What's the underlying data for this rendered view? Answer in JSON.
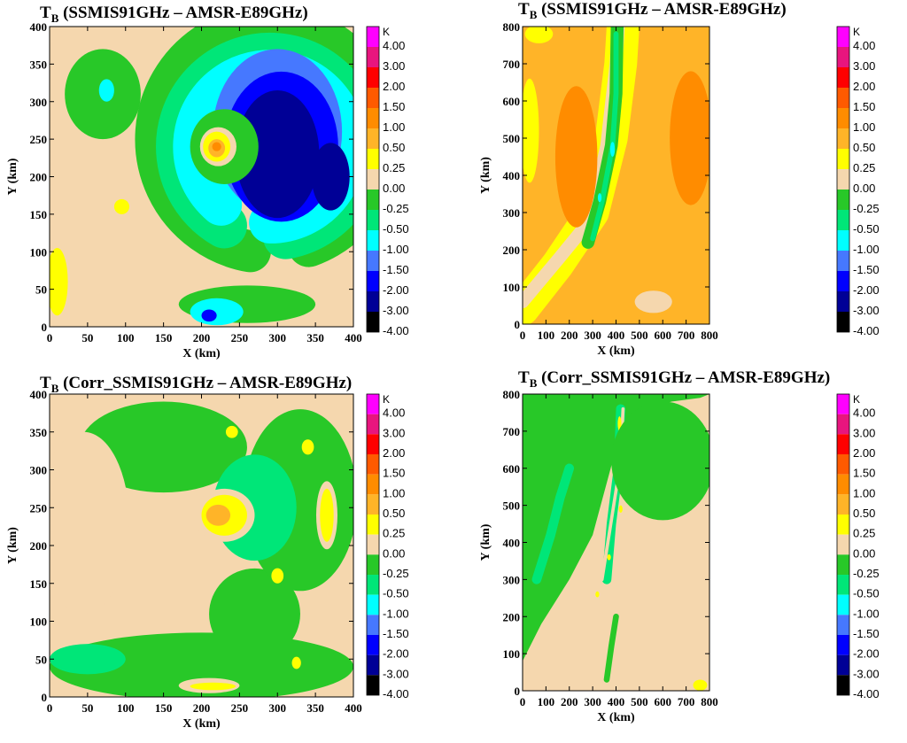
{
  "colorbar": {
    "unit": "K",
    "levels": [
      "4.00",
      "3.00",
      "2.00",
      "1.50",
      "1.00",
      "0.50",
      "0.25",
      "0.00",
      "-0.25",
      "-0.50",
      "-1.00",
      "-1.50",
      "-2.00",
      "-3.00",
      "-4.00"
    ],
    "colors": [
      "#ff00ff",
      "#e8157e",
      "#ff0000",
      "#ff5a00",
      "#ff8c00",
      "#ffb428",
      "#ffff00",
      "#f5d7ae",
      "#28c828",
      "#00e678",
      "#00ffff",
      "#4678ff",
      "#0000ff",
      "#000096",
      "#000000"
    ]
  },
  "chart_data": [
    {
      "type": "heatmap",
      "panel": "top-left",
      "title_main": "T",
      "title_sub": "B",
      "title_rest": " (SSMIS91GHz – AMSR-E89GHz)",
      "xlabel": "X (km)",
      "ylabel": "Y (km)",
      "xlim": [
        0,
        400
      ],
      "ylim": [
        0,
        400
      ],
      "xticks": [
        "0",
        "50",
        "100",
        "150",
        "200",
        "250",
        "300",
        "350",
        "400"
      ],
      "yticks": [
        "0",
        "50",
        "100",
        "150",
        "200",
        "250",
        "300",
        "350",
        "400"
      ],
      "background_level": "0.00",
      "features": [
        {
          "shape": "ring",
          "cx": 290,
          "cy": 250,
          "r": 150,
          "w": 55,
          "a0": -70,
          "a1": 260,
          "level": "-0.25"
        },
        {
          "shape": "ring",
          "cx": 290,
          "cy": 240,
          "r": 120,
          "w": 60,
          "a0": -80,
          "a1": 240,
          "level": "-0.50"
        },
        {
          "shape": "ring",
          "cx": 290,
          "cy": 240,
          "r": 100,
          "w": 55,
          "a0": -90,
          "a1": 230,
          "level": "-1.00"
        },
        {
          "shape": "ellipse",
          "cx": 300,
          "cy": 260,
          "rx": 85,
          "ry": 110,
          "level": "-1.50"
        },
        {
          "shape": "ellipse",
          "cx": 305,
          "cy": 240,
          "rx": 75,
          "ry": 100,
          "level": "-2.00"
        },
        {
          "shape": "ellipse",
          "cx": 300,
          "cy": 230,
          "rx": 55,
          "ry": 85,
          "level": "-3.00"
        },
        {
          "shape": "ellipse",
          "cx": 230,
          "cy": 240,
          "rx": 45,
          "ry": 50,
          "level": "-0.25"
        },
        {
          "shape": "ellipse",
          "cx": 222,
          "cy": 240,
          "rx": 24,
          "ry": 26,
          "level": "0.00"
        },
        {
          "shape": "ellipse",
          "cx": 220,
          "cy": 240,
          "rx": 18,
          "ry": 20,
          "level": "0.25"
        },
        {
          "shape": "ellipse",
          "cx": 220,
          "cy": 238,
          "rx": 11,
          "ry": 12,
          "level": "0.50"
        },
        {
          "shape": "ellipse",
          "cx": 220,
          "cy": 240,
          "rx": 6,
          "ry": 6,
          "level": "1.00"
        },
        {
          "shape": "ellipse",
          "cx": 370,
          "cy": 200,
          "rx": 25,
          "ry": 45,
          "level": "-3.00"
        },
        {
          "shape": "ellipse",
          "cx": 70,
          "cy": 310,
          "rx": 50,
          "ry": 60,
          "level": "-0.25"
        },
        {
          "shape": "ellipse",
          "cx": 75,
          "cy": 315,
          "rx": 10,
          "ry": 15,
          "level": "-1.00"
        },
        {
          "shape": "ellipse",
          "cx": 260,
          "cy": 30,
          "rx": 90,
          "ry": 25,
          "level": "-0.25"
        },
        {
          "shape": "ellipse",
          "cx": 220,
          "cy": 20,
          "rx": 35,
          "ry": 18,
          "level": "-1.00"
        },
        {
          "shape": "ellipse",
          "cx": 210,
          "cy": 15,
          "rx": 10,
          "ry": 8,
          "level": "-2.00"
        },
        {
          "shape": "ellipse",
          "cx": 10,
          "cy": 60,
          "rx": 14,
          "ry": 45,
          "level": "0.25"
        },
        {
          "shape": "ellipse",
          "cx": 95,
          "cy": 160,
          "rx": 10,
          "ry": 10,
          "level": "0.25"
        }
      ]
    },
    {
      "type": "heatmap",
      "panel": "top-right",
      "title_main": "T",
      "title_sub": "B",
      "title_rest": " (SSMIS91GHz – AMSR-E89GHz)",
      "xlabel": "X (km)",
      "ylabel": "Y (km)",
      "xlim": [
        0,
        800
      ],
      "ylim": [
        0,
        800
      ],
      "xticks": [
        "0",
        "100",
        "200",
        "300",
        "400",
        "500",
        "600",
        "700",
        "800"
      ],
      "yticks": [
        "0",
        "100",
        "200",
        "300",
        "400",
        "500",
        "600",
        "700",
        "800"
      ],
      "background_level": "0.50",
      "features": [
        {
          "shape": "band",
          "pts": [
            [
              0,
              40
            ],
            [
              150,
              160
            ],
            [
              300,
              300
            ],
            [
              380,
              500
            ],
            [
              420,
              700
            ],
            [
              430,
              800
            ]
          ],
          "w": 140,
          "level": "0.25"
        },
        {
          "shape": "band",
          "pts": [
            [
              0,
              60
            ],
            [
              160,
              180
            ],
            [
              290,
              280
            ],
            [
              360,
              480
            ],
            [
              400,
              700
            ],
            [
              410,
              800
            ]
          ],
          "w": 55,
          "level": "0.00"
        },
        {
          "shape": "band",
          "pts": [
            [
              280,
              220
            ],
            [
              330,
              330
            ],
            [
              380,
              480
            ],
            [
              400,
              620
            ],
            [
              405,
              800
            ]
          ],
          "w": 55,
          "level": "-0.25"
        },
        {
          "shape": "band",
          "pts": [
            [
              300,
              230
            ],
            [
              340,
              330
            ],
            [
              385,
              480
            ],
            [
              400,
              620
            ],
            [
              400,
              780
            ]
          ],
          "w": 22,
          "level": "-0.50"
        },
        {
          "shape": "ellipse",
          "cx": 385,
          "cy": 470,
          "rx": 10,
          "ry": 20,
          "level": "-1.00"
        },
        {
          "shape": "ellipse",
          "cx": 330,
          "cy": 340,
          "rx": 8,
          "ry": 12,
          "level": "-1.00"
        },
        {
          "shape": "ellipse",
          "cx": 230,
          "cy": 450,
          "rx": 90,
          "ry": 190,
          "level": "1.00"
        },
        {
          "shape": "ellipse",
          "cx": 720,
          "cy": 500,
          "rx": 90,
          "ry": 180,
          "level": "1.00"
        },
        {
          "shape": "ellipse",
          "cx": 30,
          "cy": 520,
          "rx": 40,
          "ry": 140,
          "level": "0.25"
        },
        {
          "shape": "ellipse",
          "cx": 70,
          "cy": 780,
          "rx": 60,
          "ry": 25,
          "level": "0.25"
        },
        {
          "shape": "ellipse",
          "cx": 560,
          "cy": 60,
          "rx": 80,
          "ry": 30,
          "level": "0.00"
        }
      ]
    },
    {
      "type": "heatmap",
      "panel": "bottom-left",
      "title_main": "T",
      "title_sub": "B",
      "title_rest": " (Corr_SSMIS91GHz  – AMSR-E89GHz)",
      "xlabel": "X (km)",
      "ylabel": "Y (km)",
      "xlim": [
        0,
        400
      ],
      "ylim": [
        0,
        400
      ],
      "xticks": [
        "0",
        "50",
        "100",
        "150",
        "200",
        "250",
        "300",
        "350",
        "400"
      ],
      "yticks": [
        "0",
        "50",
        "100",
        "150",
        "200",
        "250",
        "300",
        "350",
        "400"
      ],
      "background_level": "0.00",
      "features": [
        {
          "shape": "ring",
          "cx": 270,
          "cy": 240,
          "r": 130,
          "w": 120,
          "a0": -90,
          "a1": 270,
          "level": "-0.25"
        },
        {
          "shape": "ellipse",
          "cx": 330,
          "cy": 260,
          "rx": 75,
          "ry": 120,
          "level": "-0.25"
        },
        {
          "shape": "ellipse",
          "cx": 150,
          "cy": 330,
          "rx": 110,
          "ry": 60,
          "level": "-0.25"
        },
        {
          "shape": "ellipse",
          "cx": 200,
          "cy": 40,
          "rx": 200,
          "ry": 45,
          "level": "-0.25"
        },
        {
          "shape": "ellipse",
          "cx": 270,
          "cy": 250,
          "rx": 55,
          "ry": 70,
          "level": "-0.50"
        },
        {
          "shape": "ellipse",
          "cx": 230,
          "cy": 240,
          "rx": 40,
          "ry": 35,
          "level": "0.00"
        },
        {
          "shape": "ellipse",
          "cx": 230,
          "cy": 240,
          "rx": 30,
          "ry": 27,
          "level": "0.25"
        },
        {
          "shape": "ellipse",
          "cx": 222,
          "cy": 240,
          "rx": 16,
          "ry": 14,
          "level": "0.50"
        },
        {
          "shape": "ellipse",
          "cx": 365,
          "cy": 240,
          "rx": 14,
          "ry": 45,
          "level": "0.00"
        },
        {
          "shape": "ellipse",
          "cx": 365,
          "cy": 240,
          "rx": 9,
          "ry": 35,
          "level": "0.25"
        },
        {
          "shape": "ellipse",
          "cx": 210,
          "cy": 15,
          "rx": 40,
          "ry": 10,
          "level": "0.00"
        },
        {
          "shape": "ellipse",
          "cx": 215,
          "cy": 14,
          "rx": 30,
          "ry": 5,
          "level": "0.25"
        },
        {
          "shape": "ellipse",
          "cx": 50,
          "cy": 50,
          "rx": 50,
          "ry": 20,
          "level": "-0.50"
        },
        {
          "shape": "ellipse",
          "cx": 340,
          "cy": 330,
          "rx": 8,
          "ry": 10,
          "level": "0.25"
        },
        {
          "shape": "ellipse",
          "cx": 300,
          "cy": 160,
          "rx": 8,
          "ry": 10,
          "level": "0.25"
        },
        {
          "shape": "ellipse",
          "cx": 325,
          "cy": 45,
          "rx": 6,
          "ry": 8,
          "level": "0.25"
        },
        {
          "shape": "ellipse",
          "cx": 240,
          "cy": 350,
          "rx": 8,
          "ry": 8,
          "level": "0.25"
        },
        {
          "shape": "ellipse",
          "cx": 45,
          "cy": 230,
          "rx": 60,
          "ry": 120,
          "level": "0.00"
        }
      ]
    },
    {
      "type": "heatmap",
      "panel": "bottom-right",
      "title_main": "T",
      "title_sub": "B",
      "title_rest": " (Corr_SSMIS91GHz  – AMSR-E89GHz)",
      "xlabel": "X (km)",
      "ylabel": "Y (km)",
      "xlim": [
        0,
        800
      ],
      "ylim": [
        0,
        800
      ],
      "xticks": [
        "0",
        "100",
        "200",
        "300",
        "400",
        "500",
        "600",
        "700",
        "800"
      ],
      "yticks": [
        "0",
        "100",
        "200",
        "300",
        "400",
        "500",
        "600",
        "700",
        "800"
      ],
      "background_level": "0.00",
      "features": [
        {
          "shape": "poly",
          "pts": [
            [
              0,
              80
            ],
            [
              80,
              180
            ],
            [
              200,
              300
            ],
            [
              300,
              420
            ],
            [
              360,
              560
            ],
            [
              420,
              700
            ],
            [
              520,
              760
            ],
            [
              640,
              780
            ],
            [
              760,
              790
            ],
            [
              800,
              800
            ],
            [
              0,
              800
            ]
          ],
          "level": "-0.25"
        },
        {
          "shape": "band",
          "pts": [
            [
              60,
              300
            ],
            [
              120,
              420
            ],
            [
              160,
              520
            ],
            [
              200,
              600
            ]
          ],
          "w": 40,
          "level": "-0.50"
        },
        {
          "shape": "band",
          "pts": [
            [
              360,
              300
            ],
            [
              380,
              450
            ],
            [
              410,
              600
            ],
            [
              420,
              760
            ]
          ],
          "w": 40,
          "level": "-0.50"
        },
        {
          "shape": "band",
          "pts": [
            [
              340,
              300
            ],
            [
              380,
              460
            ],
            [
              420,
              620
            ],
            [
              430,
              760
            ]
          ],
          "w": 14,
          "level": "0.00"
        },
        {
          "shape": "ellipse",
          "cx": 430,
          "cy": 620,
          "rx": 10,
          "ry": 25,
          "level": "0.25"
        },
        {
          "shape": "ellipse",
          "cx": 420,
          "cy": 490,
          "rx": 8,
          "ry": 10,
          "level": "0.25"
        },
        {
          "shape": "ellipse",
          "cx": 415,
          "cy": 720,
          "rx": 8,
          "ry": 20,
          "level": "0.25"
        },
        {
          "shape": "ellipse",
          "cx": 320,
          "cy": 260,
          "rx": 8,
          "ry": 8,
          "level": "0.25"
        },
        {
          "shape": "ellipse",
          "cx": 370,
          "cy": 360,
          "rx": 8,
          "ry": 8,
          "level": "0.25"
        },
        {
          "shape": "ellipse",
          "cx": 760,
          "cy": 15,
          "rx": 30,
          "ry": 15,
          "level": "0.25"
        },
        {
          "shape": "ellipse",
          "cx": 600,
          "cy": 620,
          "rx": 220,
          "ry": 160,
          "level": "-0.25"
        },
        {
          "shape": "band",
          "pts": [
            [
              360,
              30
            ],
            [
              380,
              120
            ],
            [
              400,
              200
            ]
          ],
          "w": 25,
          "level": "-0.25"
        }
      ]
    }
  ]
}
